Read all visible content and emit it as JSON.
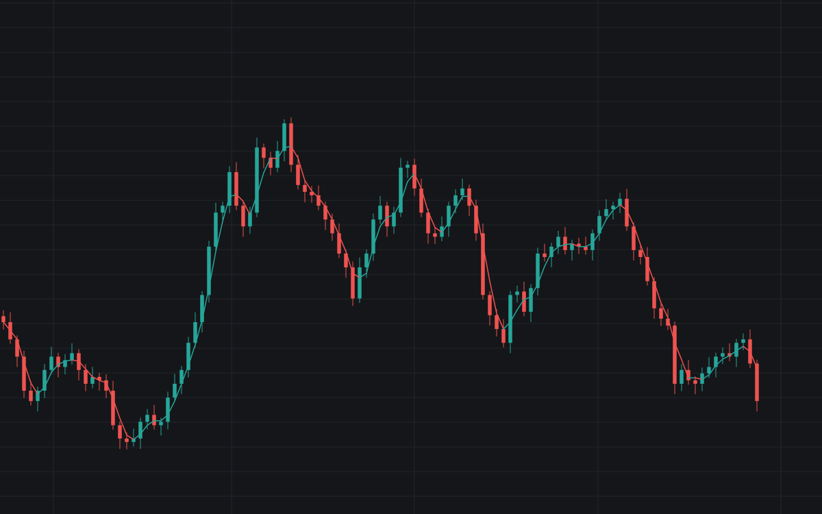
{
  "chart_data": {
    "type": "candlestick",
    "background": "#151619",
    "grid": true,
    "grid_color": "#22252b",
    "up_color": "#26a69a",
    "down_color": "#ef5350",
    "xlim": [
      -0.5,
      119.5
    ],
    "xticks": [
      7.3,
      33.3,
      60,
      86.8,
      113.5
    ],
    "ylim": [
      96.4,
      200.6
    ],
    "yticks": [
      100,
      105,
      110,
      115,
      120,
      125,
      130,
      135,
      140,
      145,
      150,
      155,
      160,
      165,
      170,
      175,
      180,
      185,
      190,
      195,
      200
    ],
    "ohlc": [
      [
        136.5,
        137.7,
        133.8,
        135.3
      ],
      [
        135.3,
        137.3,
        130.9,
        131.8
      ],
      [
        131.8,
        132.6,
        126.2,
        128.3
      ],
      [
        128.3,
        129.5,
        119.9,
        121.4
      ],
      [
        121.4,
        123.4,
        118.4,
        119.3
      ],
      [
        119.3,
        122.2,
        117.2,
        121.4
      ],
      [
        121.4,
        126.8,
        119.9,
        125.6
      ],
      [
        125.6,
        130.3,
        124.7,
        128.3
      ],
      [
        128.3,
        129.1,
        124.1,
        126.2
      ],
      [
        126.2,
        128.8,
        124.7,
        127.6
      ],
      [
        127.6,
        131.0,
        126.7,
        129.0
      ],
      [
        129.0,
        129.8,
        123.5,
        125.6
      ],
      [
        125.6,
        126.8,
        121.3,
        122.8
      ],
      [
        122.8,
        126.2,
        121.9,
        124.2
      ],
      [
        124.2,
        125.0,
        121.4,
        123.5
      ],
      [
        123.5,
        124.7,
        119.9,
        121.4
      ],
      [
        121.4,
        123.4,
        113.5,
        114.4
      ],
      [
        114.4,
        115.2,
        109.6,
        111.7
      ],
      [
        111.7,
        112.9,
        109.5,
        111.0
      ],
      [
        111.0,
        113.7,
        110.1,
        111.7
      ],
      [
        111.7,
        115.9,
        109.6,
        115.1
      ],
      [
        115.1,
        117.7,
        113.6,
        116.5
      ],
      [
        116.5,
        118.5,
        113.5,
        114.4
      ],
      [
        114.4,
        115.9,
        112.3,
        115.1
      ],
      [
        115.1,
        121.2,
        113.6,
        120.0
      ],
      [
        120.0,
        124.8,
        119.1,
        122.8
      ],
      [
        122.8,
        126.4,
        120.7,
        125.6
      ],
      [
        125.6,
        132.3,
        124.1,
        131.1
      ],
      [
        131.1,
        137.3,
        130.2,
        135.3
      ],
      [
        135.3,
        141.6,
        133.2,
        140.8
      ],
      [
        140.8,
        151.8,
        139.3,
        150.6
      ],
      [
        150.6,
        159.5,
        149.7,
        157.5
      ],
      [
        157.5,
        159.7,
        155.4,
        158.9
      ],
      [
        158.9,
        166.9,
        157.4,
        165.7
      ],
      [
        165.7,
        167.7,
        158.0,
        158.9
      ],
      [
        158.9,
        159.7,
        152.6,
        154.7
      ],
      [
        154.7,
        158.7,
        153.2,
        157.5
      ],
      [
        157.5,
        172.7,
        156.6,
        170.7
      ],
      [
        170.7,
        171.5,
        166.5,
        168.6
      ],
      [
        168.6,
        169.8,
        165.1,
        166.6
      ],
      [
        166.6,
        172.0,
        165.7,
        170.0
      ],
      [
        170.0,
        176.4,
        167.9,
        175.6
      ],
      [
        175.6,
        176.8,
        165.7,
        167.2
      ],
      [
        167.2,
        169.2,
        162.2,
        163.1
      ],
      [
        163.1,
        163.9,
        159.6,
        161.7
      ],
      [
        161.7,
        162.9,
        159.5,
        161.0
      ],
      [
        161.0,
        163.0,
        158.0,
        158.9
      ],
      [
        158.9,
        159.7,
        154.0,
        156.1
      ],
      [
        156.1,
        157.3,
        151.8,
        153.3
      ],
      [
        153.3,
        155.3,
        148.3,
        149.2
      ],
      [
        149.2,
        150.0,
        144.3,
        146.4
      ],
      [
        146.4,
        147.6,
        138.6,
        140.1
      ],
      [
        140.1,
        148.4,
        139.2,
        146.4
      ],
      [
        146.4,
        150.0,
        144.3,
        149.2
      ],
      [
        149.2,
        157.3,
        147.7,
        156.1
      ],
      [
        156.1,
        160.9,
        155.2,
        158.9
      ],
      [
        158.9,
        159.7,
        152.6,
        154.7
      ],
      [
        154.7,
        158.7,
        153.2,
        157.5
      ],
      [
        157.5,
        168.6,
        156.6,
        166.6
      ],
      [
        166.6,
        168.0,
        164.5,
        167.2
      ],
      [
        167.2,
        168.4,
        160.9,
        162.4
      ],
      [
        162.4,
        164.4,
        156.6,
        157.5
      ],
      [
        157.5,
        158.3,
        151.2,
        153.3
      ],
      [
        153.3,
        154.5,
        151.1,
        152.6
      ],
      [
        152.6,
        156.7,
        151.7,
        154.7
      ],
      [
        154.7,
        159.7,
        152.6,
        158.9
      ],
      [
        158.9,
        162.2,
        157.4,
        161.0
      ],
      [
        161.0,
        164.4,
        160.1,
        162.4
      ],
      [
        162.4,
        163.2,
        156.8,
        158.9
      ],
      [
        158.9,
        160.1,
        151.8,
        153.3
      ],
      [
        153.3,
        155.3,
        139.9,
        140.8
      ],
      [
        140.8,
        141.6,
        134.6,
        136.7
      ],
      [
        136.7,
        137.9,
        132.4,
        133.9
      ],
      [
        133.9,
        135.9,
        130.2,
        131.1
      ],
      [
        131.1,
        141.6,
        129.0,
        140.8
      ],
      [
        140.8,
        142.7,
        139.3,
        141.5
      ],
      [
        141.5,
        143.5,
        136.5,
        137.4
      ],
      [
        137.4,
        143.0,
        135.3,
        142.2
      ],
      [
        142.2,
        150.4,
        140.7,
        149.2
      ],
      [
        149.2,
        151.2,
        147.6,
        148.5
      ],
      [
        148.5,
        151.4,
        146.4,
        150.6
      ],
      [
        150.6,
        153.8,
        149.1,
        152.6
      ],
      [
        152.6,
        154.6,
        149.0,
        149.9
      ],
      [
        149.9,
        152.0,
        147.8,
        151.2
      ],
      [
        151.2,
        152.4,
        149.1,
        150.6
      ],
      [
        150.6,
        152.6,
        149.0,
        149.9
      ],
      [
        149.9,
        154.1,
        147.8,
        153.3
      ],
      [
        153.3,
        158.0,
        151.8,
        156.8
      ],
      [
        156.8,
        160.2,
        155.9,
        158.2
      ],
      [
        158.2,
        159.7,
        156.1,
        158.9
      ],
      [
        158.9,
        161.5,
        157.4,
        160.3
      ],
      [
        160.3,
        162.3,
        153.8,
        154.7
      ],
      [
        154.7,
        155.5,
        147.8,
        149.9
      ],
      [
        149.9,
        151.1,
        147.0,
        148.5
      ],
      [
        148.5,
        150.5,
        142.7,
        143.6
      ],
      [
        143.6,
        144.4,
        136.0,
        138.1
      ],
      [
        138.1,
        139.3,
        134.5,
        136.0
      ],
      [
        136.0,
        138.0,
        133.7,
        134.6
      ],
      [
        134.6,
        135.4,
        120.7,
        122.8
      ],
      [
        122.8,
        126.8,
        121.3,
        125.6
      ],
      [
        125.6,
        127.6,
        122.6,
        123.5
      ],
      [
        123.5,
        124.3,
        120.7,
        122.8
      ],
      [
        122.8,
        126.1,
        121.3,
        124.9
      ],
      [
        124.9,
        128.2,
        124.0,
        126.2
      ],
      [
        126.2,
        129.1,
        124.1,
        128.3
      ],
      [
        128.3,
        130.2,
        126.8,
        129.0
      ],
      [
        129.0,
        131.0,
        127.4,
        128.3
      ],
      [
        128.3,
        131.9,
        126.2,
        131.1
      ],
      [
        131.1,
        133.0,
        129.6,
        131.8
      ],
      [
        131.8,
        133.8,
        126.0,
        126.9
      ],
      [
        126.9,
        127.7,
        117.2,
        119.3
      ]
    ],
    "ma": {
      "up_color": "#26a69a",
      "down_color": "#ef5350",
      "values": [
        135.3,
        133.6,
        131.8,
        127.2,
        123.0,
        120.7,
        122.1,
        125.1,
        126.7,
        127.4,
        127.6,
        127.4,
        125.8,
        124.2,
        123.5,
        123.0,
        119.8,
        115.8,
        112.4,
        111.5,
        112.6,
        114.4,
        115.3,
        115.3,
        116.5,
        119.3,
        122.8,
        126.5,
        130.7,
        135.7,
        142.2,
        149.6,
        155.7,
        160.7,
        161.2,
        159.8,
        157.0,
        161.0,
        165.6,
        168.6,
        168.4,
        170.7,
        170.9,
        168.6,
        164.0,
        161.9,
        160.5,
        158.7,
        156.1,
        152.9,
        149.6,
        145.2,
        144.3,
        145.2,
        150.6,
        154.7,
        156.6,
        157.0,
        159.6,
        163.8,
        165.4,
        162.4,
        157.7,
        154.5,
        153.5,
        155.4,
        158.2,
        160.8,
        160.8,
        158.2,
        151.0,
        143.6,
        137.1,
        133.9,
        135.3,
        137.8,
        139.9,
        140.4,
        143.0,
        146.6,
        149.4,
        150.6,
        151.0,
        151.2,
        150.6,
        150.6,
        151.3,
        153.3,
        156.1,
        158.0,
        159.1,
        158.0,
        155.0,
        151.0,
        147.3,
        143.4,
        139.2,
        136.2,
        131.1,
        127.7,
        124.0,
        124.0,
        123.7,
        124.6,
        126.5,
        127.8,
        128.5,
        129.5,
        130.4,
        129.3,
        126.0
      ]
    }
  }
}
